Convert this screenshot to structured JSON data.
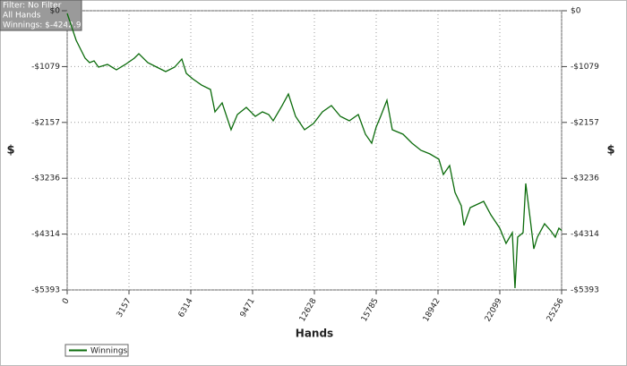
{
  "chart_data": {
    "type": "line",
    "annotations": [
      "Filter: No Filter",
      "All Hands",
      "Winnings: $-4242.91"
    ],
    "x_label": "Hands",
    "y_label": "$",
    "y2_label": "$",
    "x": [
      0,
      229,
      458,
      686,
      915,
      1144,
      1373,
      1601,
      2059,
      2516,
      2974,
      3431,
      3660,
      4118,
      4575,
      5033,
      5490,
      5856,
      6085,
      6405,
      6863,
      7320,
      7549,
      7915,
      8372,
      8693,
      9150,
      9608,
      9974,
      10294,
      10523,
      10980,
      11300,
      11666,
      12124,
      12581,
      13039,
      13496,
      13954,
      14411,
      14869,
      15235,
      15555,
      15784,
      16013,
      16333,
      16607,
      17156,
      17614,
      18071,
      18529,
      18986,
      19215,
      19535,
      19810,
      20130,
      20267,
      20588,
      21274,
      21640,
      22097,
      22418,
      22738,
      22875,
      23012,
      23287,
      23424,
      23653,
      23836,
      24019,
      24385,
      24705,
      24934,
      25117,
      25256
    ],
    "series": [
      {
        "name": "Winnings",
        "color": "#0b6b0b",
        "values": [
          -52,
          -311,
          -570,
          -743,
          -916,
          -1002,
          -968,
          -1089,
          -1037,
          -1141,
          -1037,
          -916,
          -830,
          -1002,
          -1089,
          -1175,
          -1089,
          -933,
          -1210,
          -1314,
          -1435,
          -1521,
          -1953,
          -1780,
          -2299,
          -2005,
          -1867,
          -2040,
          -1953,
          -2005,
          -2126,
          -1832,
          -1608,
          -2040,
          -2299,
          -2178,
          -1953,
          -1832,
          -2040,
          -2126,
          -2005,
          -2385,
          -2558,
          -2247,
          -2040,
          -1729,
          -2299,
          -2385,
          -2558,
          -2696,
          -2766,
          -2869,
          -3163,
          -2990,
          -3509,
          -3768,
          -4148,
          -3803,
          -3682,
          -3941,
          -4200,
          -4494,
          -4287,
          -5358,
          -4373,
          -4287,
          -3336,
          -4027,
          -4598,
          -4373,
          -4114,
          -4252,
          -4373,
          -4200,
          -4242.91
        ]
      }
    ],
    "xlim": [
      0,
      25256
    ],
    "xticks": [
      0,
      3157,
      6314,
      9471,
      12628,
      15785,
      18942,
      22099,
      25256
    ],
    "ylim": [
      -5393,
      0
    ],
    "yticks": [
      {
        "value": 0,
        "label": "$0"
      },
      {
        "value": -1079,
        "label": "-$1079"
      },
      {
        "value": -2157,
        "label": "-$2157"
      },
      {
        "value": -3236,
        "label": "-$3236"
      },
      {
        "value": -4314,
        "label": "-$4314"
      },
      {
        "value": -5393,
        "label": "-$5393"
      }
    ],
    "grid": true
  }
}
